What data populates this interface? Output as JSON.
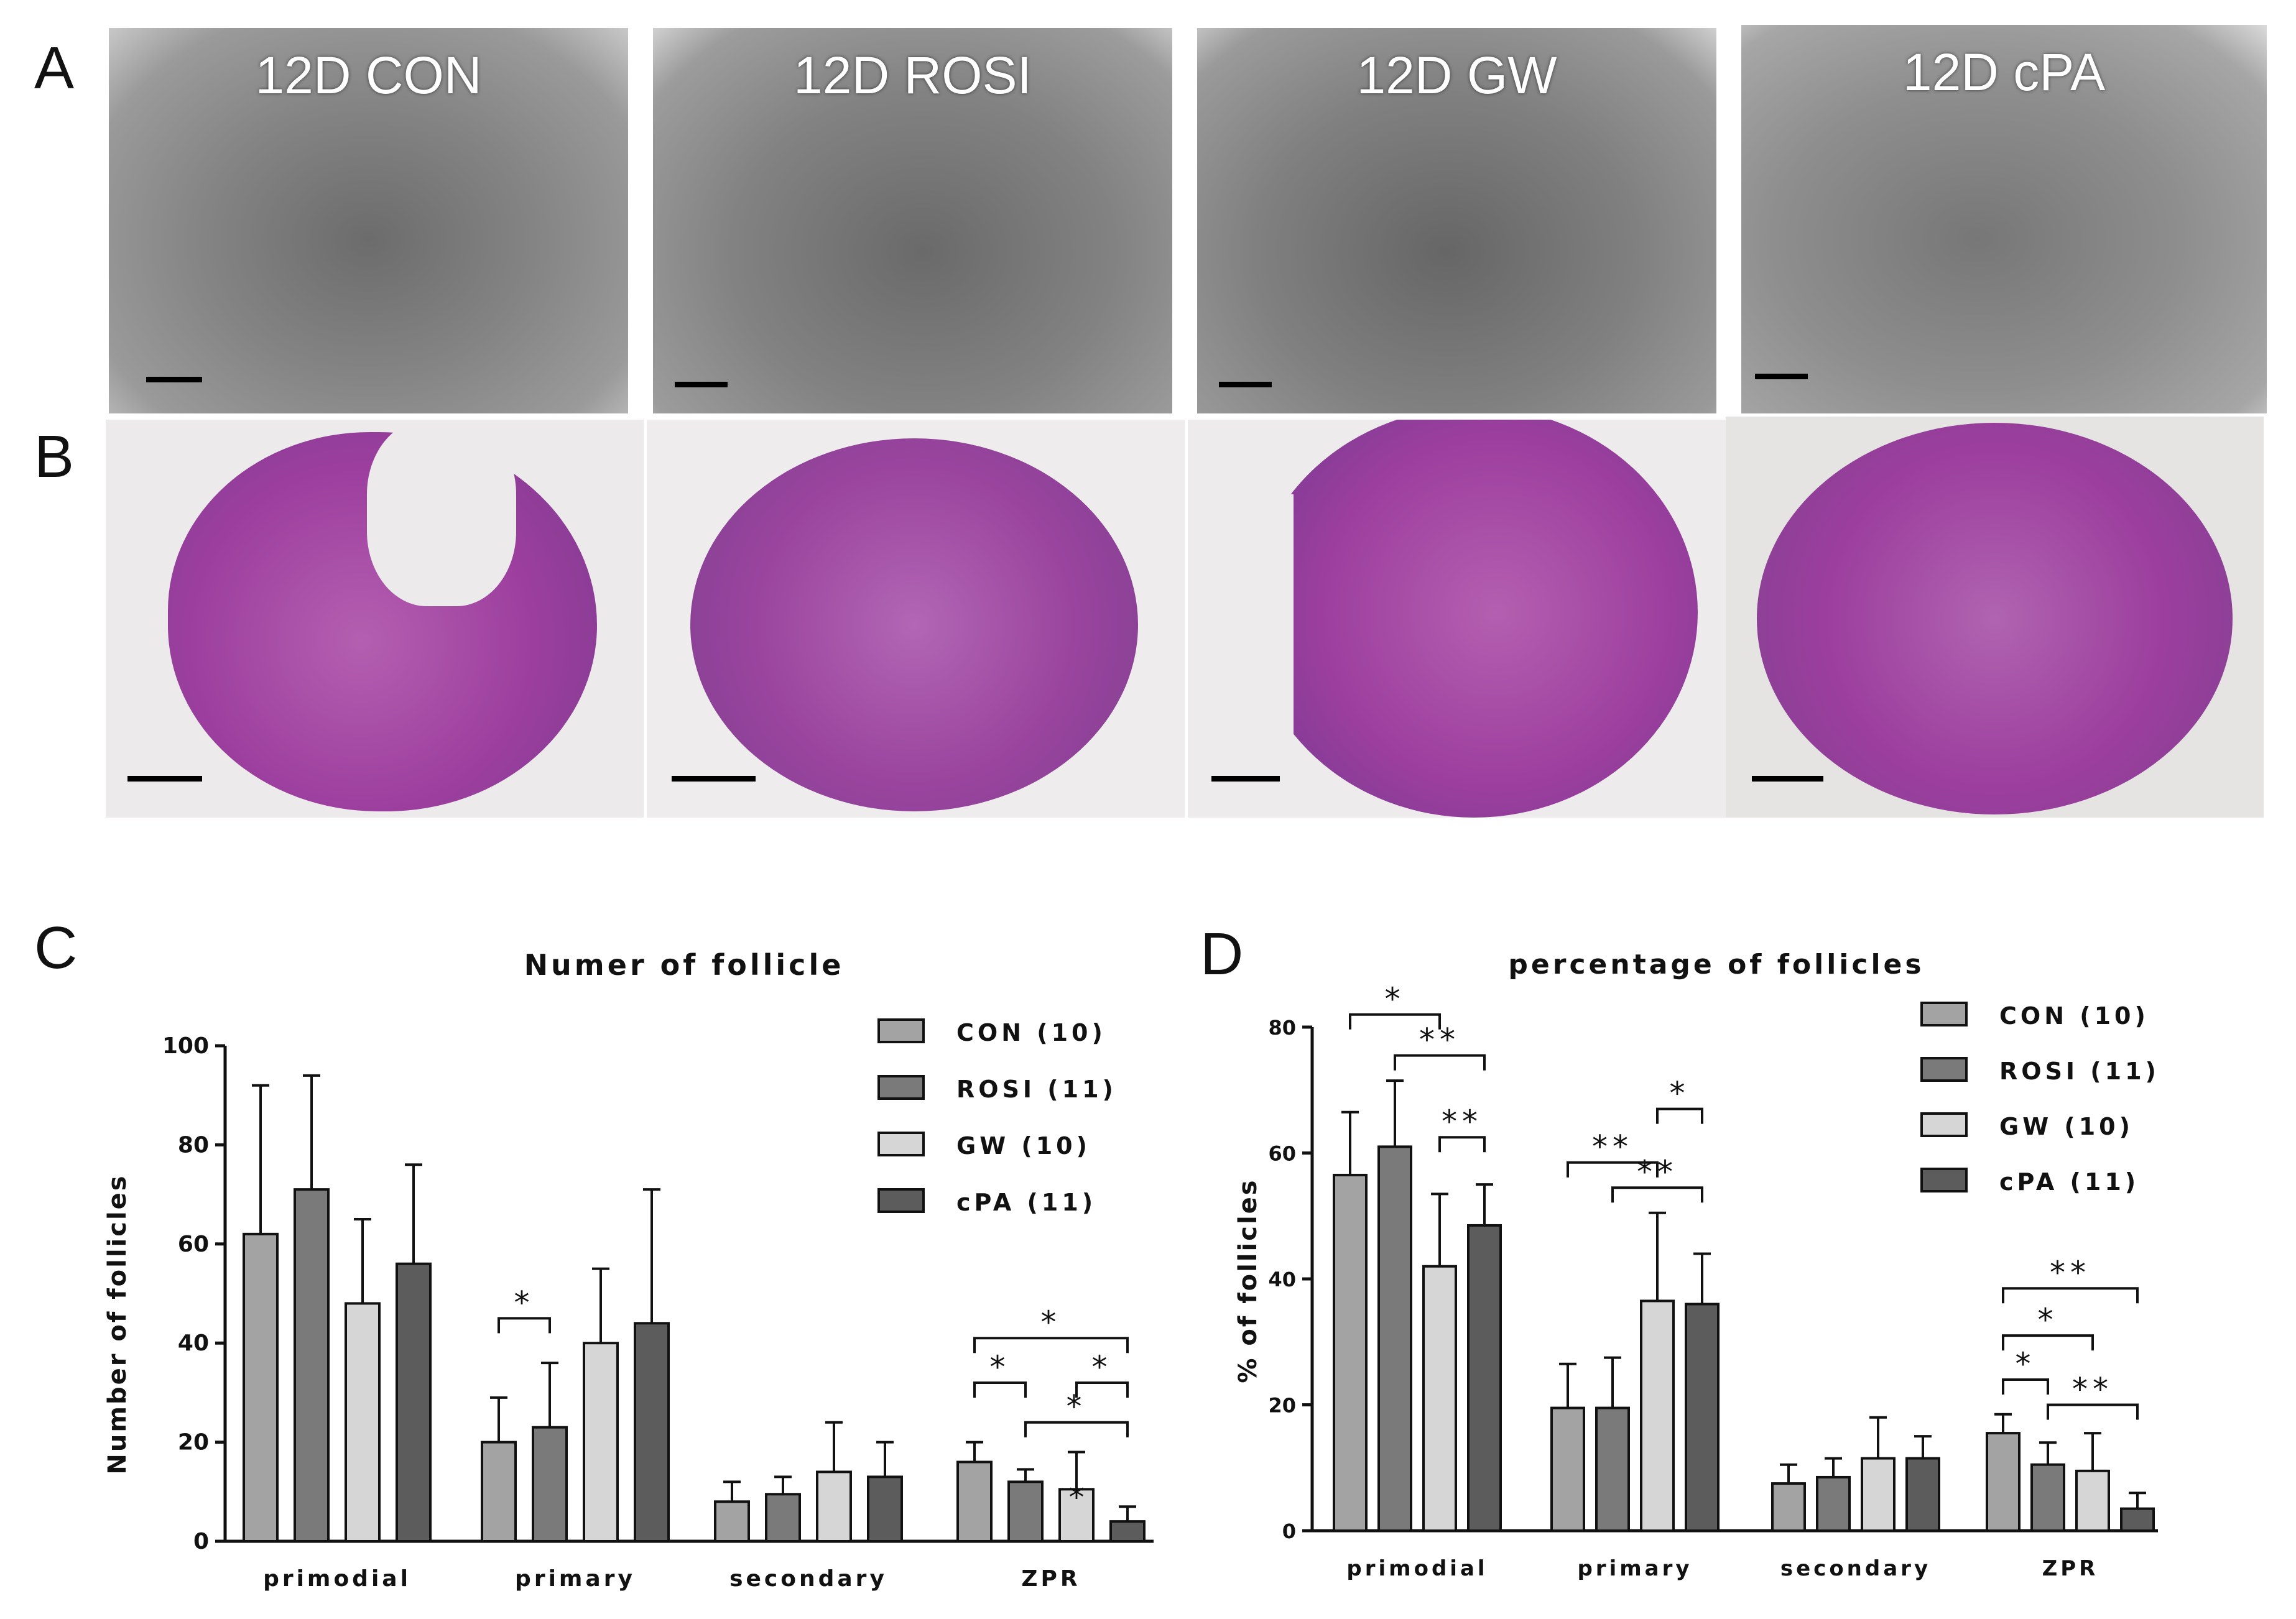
{
  "panel_labels": [
    "A",
    "B",
    "C",
    "D"
  ],
  "micrographs": {
    "row_a_titles": [
      "12D CON",
      "12D ROSI",
      "12D GW",
      "12D cPA"
    ],
    "row_b_titles": [
      "",
      "",
      "",
      ""
    ]
  },
  "colors": {
    "con": "#a3a3a3",
    "rosi": "#7a7a7a",
    "gw": "#d6d6d6",
    "cpa": "#5c5c5c",
    "he_stain": "#9c3e9e",
    "brightfield": "#7c7c7c"
  },
  "chart_data": [
    {
      "type": "bar",
      "title": "Numer of follicle",
      "xlabel": "",
      "ylabel": "Number of follicles",
      "ylim": [
        0,
        100
      ],
      "yticks": [
        "0",
        "20",
        "40",
        "60",
        "80",
        "100"
      ],
      "categories": [
        "primodial",
        "primary",
        "secondary",
        "ZPR"
      ],
      "series": [
        {
          "name": "CON (10)",
          "values": [
            62,
            20,
            8,
            16
          ],
          "errors": [
            30,
            9,
            4,
            4
          ]
        },
        {
          "name": "ROSI (11)",
          "values": [
            71,
            23,
            9.5,
            12
          ],
          "errors": [
            23,
            13,
            3.5,
            2.5
          ]
        },
        {
          "name": "GW (10)",
          "values": [
            48,
            40,
            14,
            10.5
          ],
          "errors": [
            17,
            15,
            10,
            7.5
          ]
        },
        {
          "name": "cPA (11)",
          "values": [
            56,
            44,
            13,
            4
          ],
          "errors": [
            20,
            27,
            7,
            3
          ]
        }
      ],
      "legend_location": "top-right",
      "significance": [
        {
          "cat": 1,
          "from": 0,
          "to": 1,
          "y": 45,
          "label": "*"
        },
        {
          "cat": 3,
          "from": 0,
          "to": 1,
          "y": 32,
          "label": "*"
        },
        {
          "cat": 3,
          "from": 2,
          "to": 3,
          "y": 32,
          "label": "*"
        },
        {
          "cat": 3,
          "from": 0,
          "to": 3,
          "y": 41,
          "label": "*"
        },
        {
          "cat": 3,
          "from": 1,
          "to": 3,
          "y": 24,
          "label": "*"
        }
      ],
      "bar_annotations": [
        {
          "cat": 3,
          "series": 2,
          "label": "*"
        }
      ]
    },
    {
      "type": "bar",
      "title": "percentage of follicles",
      "xlabel": "",
      "ylabel": "% of follicles",
      "ylim": [
        0,
        80
      ],
      "yticks": [
        "0",
        "20",
        "40",
        "60",
        "80"
      ],
      "categories": [
        "primodial",
        "primary",
        "secondary",
        "ZPR"
      ],
      "series": [
        {
          "name": "CON (10)",
          "values": [
            56.5,
            19.5,
            7.5,
            15.5
          ],
          "errors": [
            10,
            7,
            3,
            3
          ]
        },
        {
          "name": "ROSI (11)",
          "values": [
            61,
            19.5,
            8.5,
            10.5
          ],
          "errors": [
            10.5,
            8,
            3,
            3.5
          ]
        },
        {
          "name": "GW (10)",
          "values": [
            42,
            36.5,
            11.5,
            9.5
          ],
          "errors": [
            11.5,
            14,
            6.5,
            6
          ]
        },
        {
          "name": "cPA (11)",
          "values": [
            48.5,
            36,
            11.5,
            3.5
          ],
          "errors": [
            6.5,
            8,
            3.5,
            2.5
          ]
        }
      ],
      "legend_location": "top-right",
      "significance": [
        {
          "cat": 0,
          "from": 0,
          "to": 2,
          "y": 82,
          "label": "*"
        },
        {
          "cat": 0,
          "from": 1,
          "to": 3,
          "y": 75.5,
          "label": "**"
        },
        {
          "cat": 0,
          "from": 2,
          "to": 3,
          "y": 62.5,
          "label": "**"
        },
        {
          "cat": 1,
          "from": 2,
          "to": 3,
          "y": 67,
          "label": "*"
        },
        {
          "cat": 1,
          "from": 0,
          "to": 2,
          "y": 58.5,
          "label": "**"
        },
        {
          "cat": 1,
          "from": 1,
          "to": 3,
          "y": 54.5,
          "label": "**"
        },
        {
          "cat": 3,
          "from": 0,
          "to": 3,
          "y": 38.5,
          "label": "**"
        },
        {
          "cat": 3,
          "from": 0,
          "to": 2,
          "y": 31,
          "label": "*"
        },
        {
          "cat": 3,
          "from": 0,
          "to": 1,
          "y": 24,
          "label": "*"
        },
        {
          "cat": 3,
          "from": 1,
          "to": 3,
          "y": 20,
          "label": "**"
        }
      ],
      "bar_annotations": []
    }
  ]
}
